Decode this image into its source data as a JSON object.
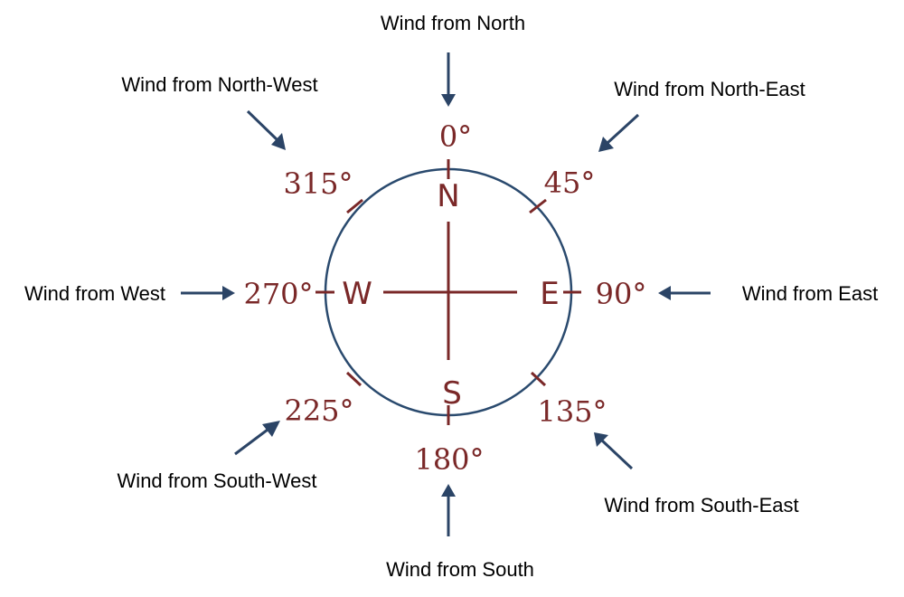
{
  "colors": {
    "accent": "#7a2828",
    "ring": "#2a4a6e",
    "arrow": "#2b4466",
    "text": "#000000"
  },
  "cardinals": {
    "north": "N",
    "east": "E",
    "south": "S",
    "west": "W"
  },
  "degrees": {
    "d0": "0°",
    "d45": "45°",
    "d90": "90°",
    "d135": "135°",
    "d180": "180°",
    "d225": "225°",
    "d270": "270°",
    "d315": "315°"
  },
  "winds": {
    "north": "Wind from North",
    "north_east": "Wind from North-East",
    "east": "Wind from East",
    "south_east": "Wind from South-East",
    "south": "Wind from South",
    "south_west": "Wind from South-West",
    "west": "Wind from West",
    "north_west": "Wind from North-West"
  }
}
